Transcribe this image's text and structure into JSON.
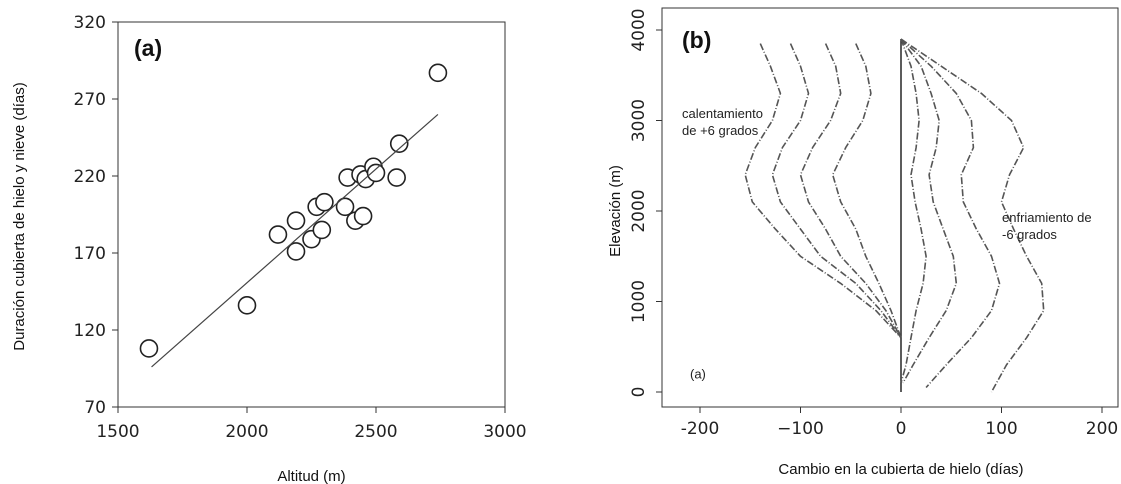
{
  "chart_data": [
    {
      "type": "scatter",
      "panel_label": "(a)",
      "xlabel": "Altitud (m)",
      "ylabel": "Duración cubierta de hielo y nieve (días)",
      "xlim": [
        1500,
        3000
      ],
      "ylim": [
        70,
        320
      ],
      "xticks": [
        1500,
        2000,
        2500,
        3000
      ],
      "yticks": [
        70,
        120,
        170,
        220,
        270,
        320
      ],
      "points": [
        {
          "x": 1620,
          "y": 108
        },
        {
          "x": 2000,
          "y": 136
        },
        {
          "x": 2120,
          "y": 182
        },
        {
          "x": 2190,
          "y": 191
        },
        {
          "x": 2190,
          "y": 171
        },
        {
          "x": 2250,
          "y": 179
        },
        {
          "x": 2270,
          "y": 200
        },
        {
          "x": 2290,
          "y": 185
        },
        {
          "x": 2300,
          "y": 203
        },
        {
          "x": 2380,
          "y": 200
        },
        {
          "x": 2390,
          "y": 219
        },
        {
          "x": 2420,
          "y": 191
        },
        {
          "x": 2440,
          "y": 221
        },
        {
          "x": 2450,
          "y": 194
        },
        {
          "x": 2460,
          "y": 218
        },
        {
          "x": 2490,
          "y": 226
        },
        {
          "x": 2500,
          "y": 222
        },
        {
          "x": 2580,
          "y": 219
        },
        {
          "x": 2590,
          "y": 241
        },
        {
          "x": 2740,
          "y": 287
        }
      ],
      "regression_line": {
        "x": [
          1630,
          2740
        ],
        "y": [
          96,
          260
        ]
      },
      "grid": false,
      "legend": "none"
    },
    {
      "type": "line",
      "panel_label": "(b)",
      "inner_label": "(a)",
      "xlabel": "Cambio en la cubierta de hielo (días)",
      "ylabel": "Elevación (m)",
      "xlim": [
        -220,
        210
      ],
      "ylim": [
        -100,
        4100
      ],
      "xticks": [
        -200,
        -100,
        0,
        100,
        200
      ],
      "xtick_labels": [
        "-200",
        "−100",
        "0",
        "100",
        "200"
      ],
      "yticks": [
        0,
        1000,
        2000,
        3000,
        4000
      ],
      "annotations": [
        {
          "text_lines": [
            "calentamiento",
            "de +6 grados"
          ],
          "near": "left-upper"
        },
        {
          "text_lines": [
            "enfriamiento de",
            "-6 grados"
          ],
          "near": "right-middle"
        }
      ],
      "vertical_reference_x": 0,
      "warming_series": [
        {
          "y": [
            3850,
            3600,
            3300,
            3000,
            2700,
            2400,
            2100,
            1800,
            1500,
            1200,
            900,
            600
          ],
          "x": [
            -45,
            -35,
            -30,
            -38,
            -55,
            -68,
            -60,
            -45,
            -35,
            -22,
            -10,
            0
          ]
        },
        {
          "y": [
            3850,
            3600,
            3300,
            3000,
            2700,
            2400,
            2100,
            1800,
            1500,
            1200,
            900,
            600
          ],
          "x": [
            -75,
            -65,
            -60,
            -70,
            -88,
            -100,
            -92,
            -75,
            -60,
            -35,
            -15,
            0
          ]
        },
        {
          "y": [
            3850,
            3600,
            3300,
            3000,
            2700,
            2400,
            2100,
            1800,
            1500,
            1200,
            900,
            600
          ],
          "x": [
            -110,
            -100,
            -92,
            -100,
            -118,
            -128,
            -120,
            -100,
            -80,
            -45,
            -20,
            0
          ]
        },
        {
          "y": [
            3850,
            3600,
            3300,
            3000,
            2700,
            2400,
            2100,
            1800,
            1500,
            1200,
            900,
            600
          ],
          "x": [
            -140,
            -130,
            -120,
            -128,
            -145,
            -155,
            -148,
            -125,
            -100,
            -60,
            -25,
            0
          ]
        }
      ],
      "cooling_series": [
        {
          "y": [
            3900,
            3600,
            3300,
            3000,
            2700,
            2400,
            2100,
            1800,
            1500,
            1200,
            900,
            600,
            300,
            100
          ],
          "x": [
            0,
            10,
            15,
            18,
            15,
            10,
            14,
            20,
            25,
            22,
            15,
            10,
            5,
            0
          ]
        },
        {
          "y": [
            3900,
            3600,
            3300,
            3000,
            2700,
            2400,
            2100,
            1800,
            1500,
            1200,
            900,
            600,
            300,
            100
          ],
          "x": [
            0,
            20,
            30,
            38,
            35,
            28,
            32,
            42,
            52,
            55,
            45,
            28,
            12,
            2
          ]
        },
        {
          "y": [
            3900,
            3600,
            3300,
            3000,
            2700,
            2400,
            2100,
            1800,
            1500,
            1200,
            900,
            600,
            300,
            50
          ],
          "x": [
            0,
            30,
            55,
            70,
            72,
            60,
            62,
            75,
            90,
            98,
            90,
            70,
            45,
            25
          ]
        },
        {
          "y": [
            3900,
            3600,
            3300,
            3000,
            2700,
            2400,
            2100,
            1800,
            1500,
            1200,
            900,
            600,
            300,
            0
          ],
          "x": [
            0,
            40,
            80,
            110,
            122,
            108,
            100,
            112,
            125,
            140,
            142,
            125,
            105,
            90
          ]
        }
      ],
      "grid": false,
      "legend": "none"
    }
  ]
}
